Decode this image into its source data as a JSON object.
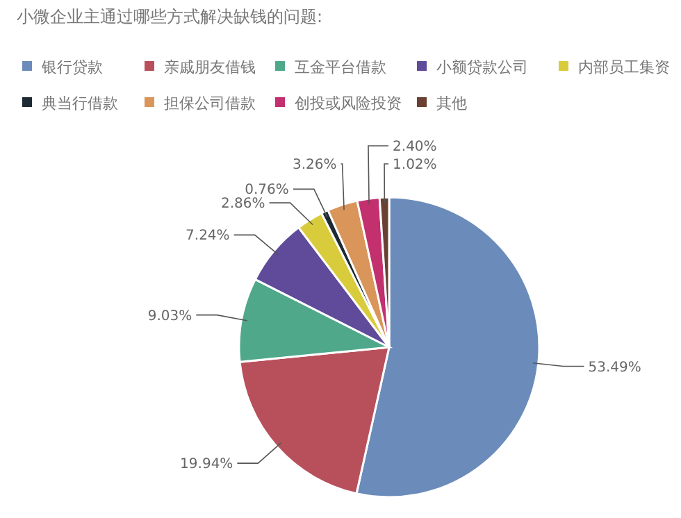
{
  "chart_data": {
    "type": "pie",
    "title": "小微企业主通过哪些方式解决缺钱的问题:",
    "categories": [
      "银行贷款",
      "亲戚朋友借钱",
      "互金平台借款",
      "小额贷款公司",
      "内部员工集资",
      "典当行借款",
      "担保公司借款",
      "创投或风险投资",
      "其他"
    ],
    "values": [
      53.49,
      19.94,
      9.03,
      7.24,
      2.86,
      0.76,
      3.26,
      2.4,
      1.02
    ],
    "colors": [
      "#6b8cba",
      "#b8505c",
      "#4fa88a",
      "#5f4b9a",
      "#d9cc3c",
      "#1e2a33",
      "#d9955a",
      "#c2306e",
      "#6a4030"
    ],
    "value_labels": [
      "53.49%",
      "19.94%",
      "9.03%",
      "7.24%",
      "2.86%",
      "0.76%",
      "3.26%",
      "2.40%",
      "1.02%"
    ],
    "legend": "top"
  }
}
